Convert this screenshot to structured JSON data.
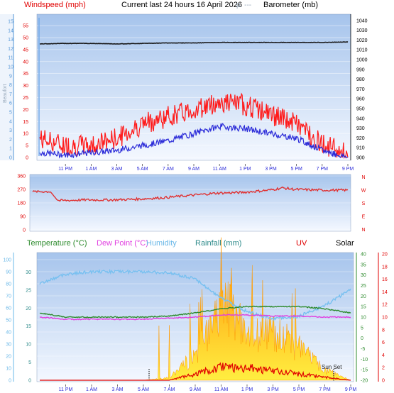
{
  "header": {
    "title": "Current last 24 hours 16 April 2026",
    "left_label": "Windspeed (mph)",
    "right_label": "Barometer (mb)",
    "legend_fragment": "p.  ---"
  },
  "time_axis": [
    "11 PM",
    "1 AM",
    "3 AM",
    "5 AM",
    "7 AM",
    "9 AM",
    "11 AM",
    "1 PM",
    "3 PM",
    "5 PM",
    "7 PM",
    "9 PM"
  ],
  "wind_panel": {
    "axis_label": "Beaufort",
    "y_ticks": [
      "0",
      "5",
      "10",
      "15",
      "20",
      "25",
      "30",
      "35",
      "40",
      "45",
      "50",
      "55"
    ],
    "beaufort_ticks": [
      "0",
      "1",
      "2",
      "3",
      "4",
      "5",
      "6",
      "7",
      "8",
      "9",
      "10",
      "11",
      "12",
      "13",
      "14",
      "15"
    ],
    "baro_ticks": [
      "900",
      "910",
      "920",
      "930",
      "940",
      "950",
      "960",
      "970",
      "980",
      "990",
      "1000",
      "1010",
      "1020",
      "1030",
      "1040"
    ]
  },
  "direction_panel": {
    "y_ticks": [
      "0",
      "90",
      "180",
      "270",
      "360"
    ],
    "compass": [
      "N",
      "W",
      "S",
      "E",
      "N"
    ]
  },
  "bottom_panel": {
    "legend": {
      "temperature": "Temperature (°C)",
      "dew_point": "Dew Point (°C)",
      "humidity": "Humidity",
      "rainfall": "Rainfall (mm)",
      "uv": "UV",
      "solar": "Solar"
    },
    "humidity_ticks": [
      "0",
      "10",
      "20",
      "30",
      "40",
      "50",
      "60",
      "70",
      "80",
      "90",
      "100"
    ],
    "rain_ticks": [
      "0",
      "5",
      "10",
      "15",
      "20",
      "25",
      "30"
    ],
    "temp_ticks": [
      "-20",
      "-15",
      "-10",
      "-5",
      "0",
      "5",
      "10",
      "15",
      "20",
      "25",
      "30",
      "35",
      "40"
    ],
    "uv_ticks": [
      "0",
      "2",
      "4",
      "6",
      "8",
      "10",
      "12",
      "14",
      "16",
      "18",
      "20"
    ],
    "sun_label": "Sun Set"
  },
  "colors": {
    "gust": "#ff1a1a",
    "wind": "#2a2ad8",
    "barometer": "#1a1a1a",
    "direction": "#e03030",
    "temperature": "#2e8b2e",
    "dew_point": "#e040e0",
    "humidity": "#78c0f0",
    "solar": "#ff9900",
    "uv": "#e00000"
  },
  "chart_data": [
    {
      "type": "line",
      "x": [
        "21:00",
        "23:00",
        "01:00",
        "03:00",
        "05:00",
        "07:00",
        "09:00",
        "11:00",
        "13:00",
        "15:00",
        "17:00",
        "19:00",
        "21:00"
      ],
      "series": [
        {
          "name": "Windspeed (mph)",
          "values": [
            2,
            1,
            2,
            3,
            5,
            7,
            10,
            13,
            12,
            10,
            8,
            3,
            0
          ]
        },
        {
          "name": "Barometer (mb)",
          "values": [
            1016,
            1016.5,
            1016.5,
            1016,
            1016.5,
            1017,
            1017,
            1017.5,
            1017.5,
            1017.5,
            1017.5,
            1017.5,
            1018
          ]
        }
      ],
      "gust_values": [
        8,
        5,
        5,
        8,
        14,
        17,
        20,
        23,
        22,
        18,
        14,
        6,
        1
      ],
      "ylim": [
        0,
        58
      ],
      "y2lim": [
        900,
        1042
      ]
    },
    {
      "type": "line",
      "x": [
        "21:00",
        "22:00",
        "23:00",
        "01:00",
        "03:00",
        "05:00",
        "07:00",
        "09:00",
        "11:00",
        "13:00",
        "15:00",
        "16:00",
        "17:00",
        "19:00",
        "21:00"
      ],
      "values": [
        255,
        250,
        195,
        200,
        200,
        205,
        215,
        230,
        245,
        250,
        265,
        280,
        270,
        265,
        265
      ],
      "ylim": [
        0,
        360
      ]
    },
    {
      "type": "line",
      "x": [
        "21:00",
        "23:00",
        "01:00",
        "03:00",
        "05:00",
        "07:00",
        "09:00",
        "11:00",
        "13:00",
        "15:00",
        "17:00",
        "19:00",
        "21:00"
      ],
      "series": [
        {
          "name": "Temperature (°C)",
          "values": [
            12,
            10,
            10,
            10,
            10,
            10.5,
            12,
            14,
            15,
            15,
            15,
            14,
            12
          ]
        },
        {
          "name": "Dew Point (°C)",
          "values": [
            10,
            9,
            9,
            9,
            9,
            9.5,
            10,
            11,
            11,
            10.5,
            10.5,
            10,
            10
          ]
        },
        {
          "name": "Humidity",
          "values": [
            80,
            88,
            90,
            90,
            90,
            89,
            84,
            68,
            57,
            51,
            53,
            62,
            75
          ]
        },
        {
          "name": "Solar",
          "values": [
            0,
            0,
            0,
            0,
            0,
            20,
            200,
            600,
            400,
            380,
            250,
            80,
            0
          ]
        },
        {
          "name": "UV",
          "values": [
            0,
            0,
            0,
            0,
            0,
            0,
            1,
            2,
            2,
            1.5,
            1,
            0.5,
            0
          ]
        }
      ],
      "sun_set": "19:50"
    }
  ]
}
